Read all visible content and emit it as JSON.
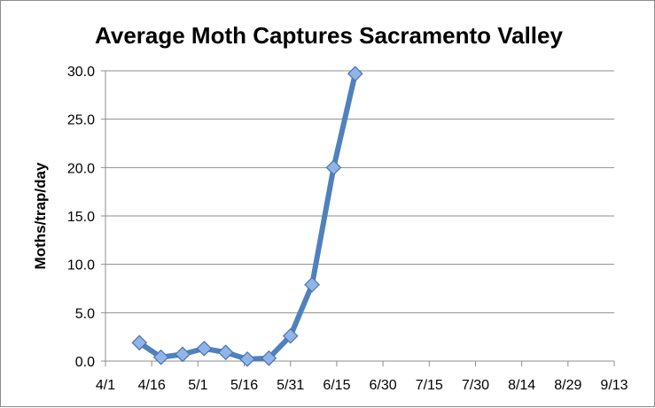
{
  "chart_data": {
    "type": "line",
    "title": "Average Moth Captures Sacramento Valley",
    "xlabel": "",
    "ylabel": "Moths/trap/day",
    "x_tick_labels": [
      "4/1",
      "4/16",
      "5/1",
      "5/16",
      "5/31",
      "6/15",
      "6/30",
      "7/15",
      "7/30",
      "8/14",
      "8/29",
      "9/13"
    ],
    "y_tick_labels": [
      "0.0",
      "5.0",
      "10.0",
      "15.0",
      "20.0",
      "25.0",
      "30.0"
    ],
    "ylim": [
      0,
      30
    ],
    "xlim": [
      "4/1",
      "9/13"
    ],
    "grid": "horizontal",
    "legend": "none",
    "marker": "diamond",
    "series": [
      {
        "color": "#4f81bd",
        "points": [
          {
            "x": "4/12",
            "y": 1.9
          },
          {
            "x": "4/19",
            "y": 0.4
          },
          {
            "x": "4/26",
            "y": 0.7
          },
          {
            "x": "5/3",
            "y": 1.3
          },
          {
            "x": "5/10",
            "y": 0.9
          },
          {
            "x": "5/17",
            "y": 0.2
          },
          {
            "x": "5/24",
            "y": 0.3
          },
          {
            "x": "5/31",
            "y": 2.6
          },
          {
            "x": "6/7",
            "y": 7.9
          },
          {
            "x": "6/14",
            "y": 20.0
          },
          {
            "x": "6/21",
            "y": 29.7
          }
        ]
      }
    ]
  }
}
